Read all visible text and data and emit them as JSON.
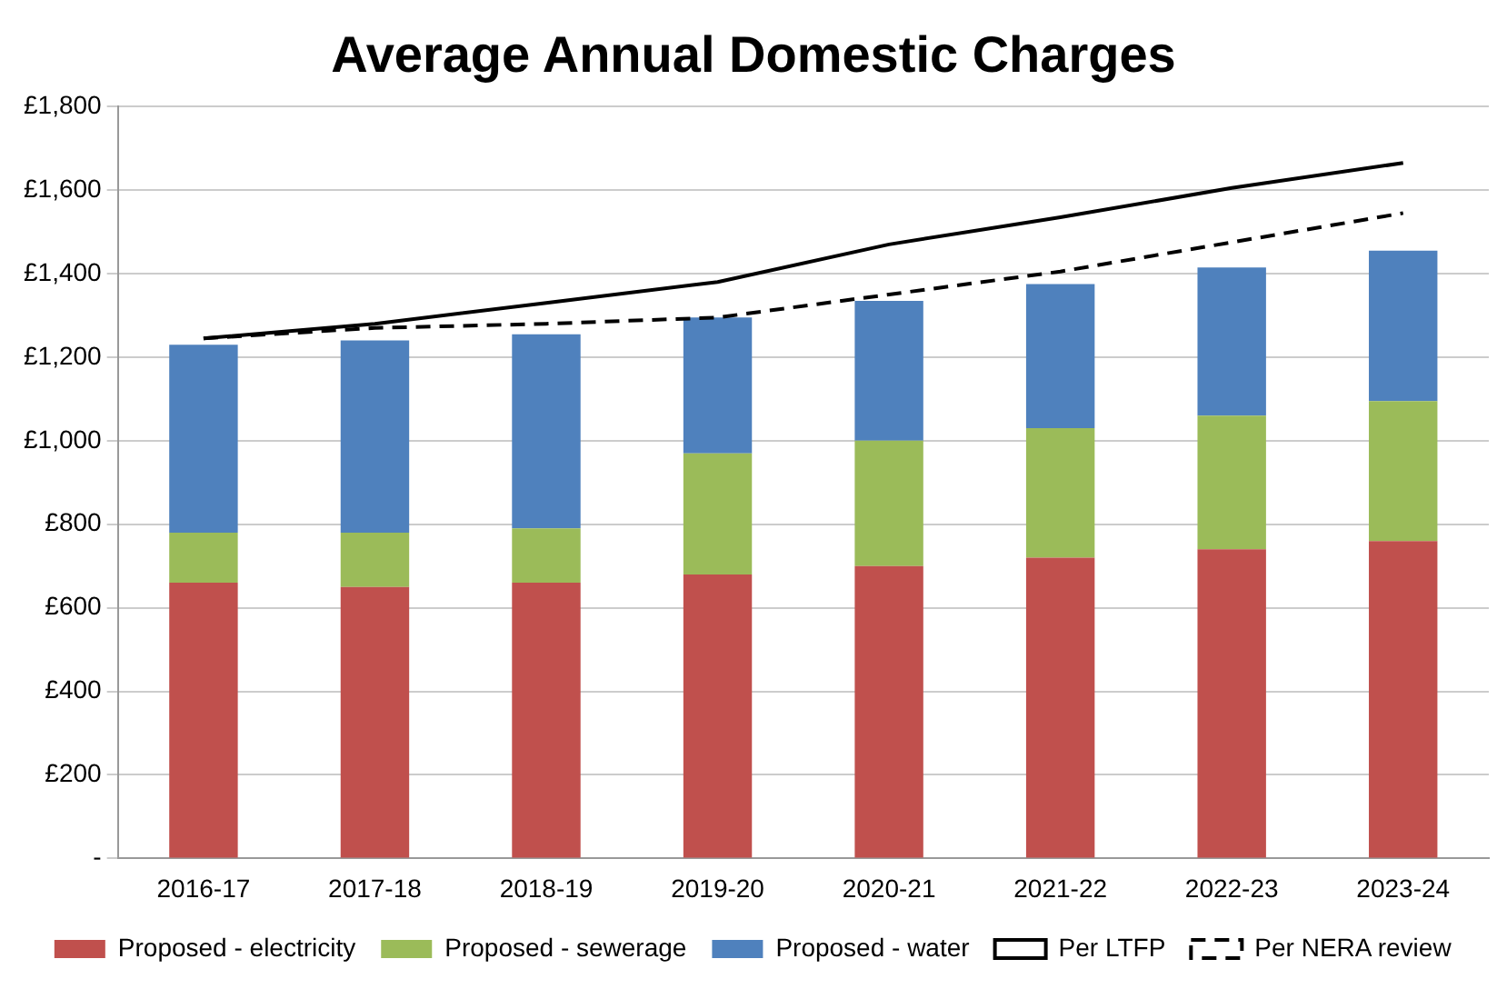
{
  "chart_data": {
    "type": "bar",
    "title": "Average Annual Domestic Charges",
    "categories": [
      "2016-17",
      "2017-18",
      "2018-19",
      "2019-20",
      "2020-21",
      "2021-22",
      "2022-23",
      "2023-24"
    ],
    "stacked": true,
    "series": [
      {
        "name": "Proposed - electricity",
        "color": "#c0504d",
        "values": [
          660,
          650,
          660,
          680,
          700,
          720,
          740,
          760
        ]
      },
      {
        "name": "Proposed - sewerage",
        "color": "#9bbb59",
        "values": [
          120,
          130,
          130,
          290,
          300,
          310,
          320,
          335
        ]
      },
      {
        "name": "Proposed - water",
        "color": "#4f81bd",
        "values": [
          450,
          460,
          465,
          325,
          335,
          345,
          355,
          360
        ]
      },
      {
        "name": "Per LTFP",
        "type": "line",
        "color": "#000000",
        "line_style": "solid",
        "values": [
          1245,
          1280,
          1330,
          1380,
          1470,
          1535,
          1605,
          1665
        ]
      },
      {
        "name": "Per NERA review",
        "type": "line",
        "color": "#000000",
        "line_style": "dashed",
        "values": [
          1245,
          1270,
          1280,
          1295,
          1350,
          1405,
          1475,
          1545
        ]
      }
    ],
    "ylim": [
      0,
      1800
    ],
    "yticks": [
      {
        "value": 0,
        "label": "-"
      },
      {
        "value": 200,
        "label": "£200"
      },
      {
        "value": 400,
        "label": "£400"
      },
      {
        "value": 600,
        "label": "£600"
      },
      {
        "value": 800,
        "label": "£800"
      },
      {
        "value": 1000,
        "label": "£1,000"
      },
      {
        "value": 1200,
        "label": "£1,200"
      },
      {
        "value": 1400,
        "label": "£1,400"
      },
      {
        "value": 1600,
        "label": "£1,600"
      },
      {
        "value": 1800,
        "label": "£1,800"
      }
    ],
    "grid": "y",
    "legend": "bottom",
    "marker": "none"
  }
}
